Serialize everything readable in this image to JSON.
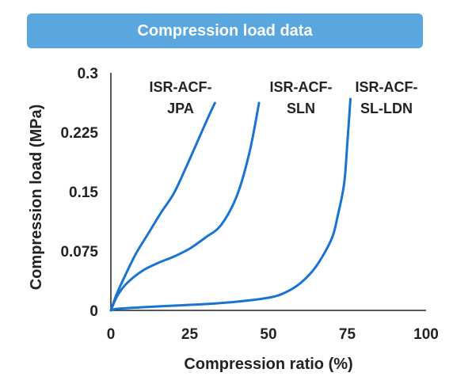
{
  "title": "Compression load data",
  "colors": {
    "banner": "#5aa6df",
    "series": "#1a73d0",
    "axis": "#222222"
  },
  "chart_data": {
    "type": "line",
    "title": "Compression load data",
    "xlabel": "Compression ratio (%)",
    "ylabel": "Compression load (MPa)",
    "xlim": [
      0,
      100
    ],
    "ylim": [
      0,
      0.3
    ],
    "x_ticks": [
      "0",
      "25",
      "50",
      "75",
      "100"
    ],
    "y_ticks": [
      "0",
      "0.075",
      "0.15",
      "0.225",
      "0.3"
    ],
    "grid": false,
    "legend": "none",
    "series": [
      {
        "name": "ISR-ACF-JPA",
        "label_lines": [
          "ISR-ACF-",
          "JPA"
        ],
        "x": [
          0,
          2,
          5,
          8,
          12,
          16,
          20,
          24,
          28,
          31,
          33
        ],
        "y": [
          0,
          0.022,
          0.048,
          0.072,
          0.098,
          0.124,
          0.148,
          0.182,
          0.218,
          0.245,
          0.262
        ]
      },
      {
        "name": "ISR-ACF-SLN",
        "label_lines": [
          "ISR-ACF-",
          "SLN"
        ],
        "x": [
          0,
          2,
          5,
          10,
          15,
          20,
          25,
          30,
          35,
          40,
          44,
          47
        ],
        "y": [
          0,
          0.018,
          0.034,
          0.05,
          0.06,
          0.068,
          0.078,
          0.092,
          0.108,
          0.145,
          0.2,
          0.262
        ]
      },
      {
        "name": "ISR-ACF-SL-LDN",
        "label_lines": [
          "ISR-ACF-",
          "SL-LDN"
        ],
        "x": [
          0,
          2,
          10,
          20,
          30,
          40,
          50,
          55,
          60,
          65,
          70,
          72,
          74,
          75,
          76
        ],
        "y": [
          0,
          0.002,
          0.004,
          0.006,
          0.008,
          0.011,
          0.016,
          0.022,
          0.034,
          0.055,
          0.09,
          0.12,
          0.16,
          0.21,
          0.267
        ]
      }
    ]
  }
}
